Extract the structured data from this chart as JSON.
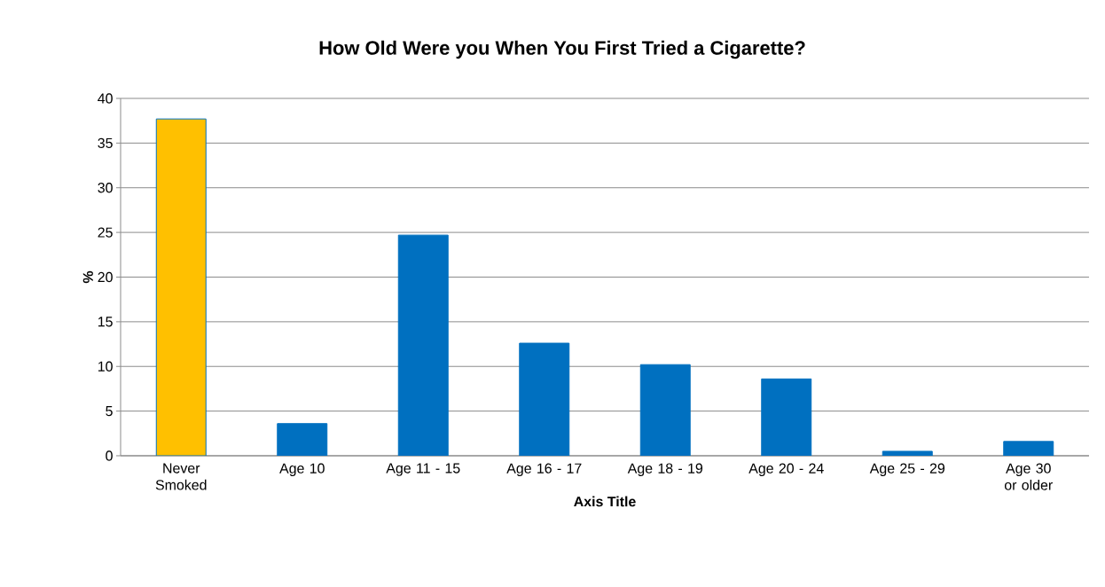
{
  "chart_data": {
    "type": "bar",
    "title": "How Old Were you When You First Tried a Cigarette?",
    "xlabel": "Axis Title",
    "ylabel": "%",
    "categories": [
      "Never Smoked",
      "Age 10",
      "Age 11 - 15",
      "Age 16 - 17",
      "Age 18 - 19",
      "Age 20 - 24",
      "Age 25 - 29",
      "Age 30 or older"
    ],
    "values": [
      37.7,
      3.6,
      24.7,
      12.6,
      10.2,
      8.6,
      0.5,
      1.6
    ],
    "color": "#0070c0",
    "colors": [
      "#ffc000",
      "#0070c0",
      "#0070c0",
      "#0070c0",
      "#0070c0",
      "#0070c0",
      "#0070c0",
      "#0070c0"
    ],
    "ylim": [
      0,
      40
    ],
    "yticks": [
      0,
      5,
      10,
      15,
      20,
      25,
      30,
      35,
      40
    ],
    "grid": "y"
  }
}
